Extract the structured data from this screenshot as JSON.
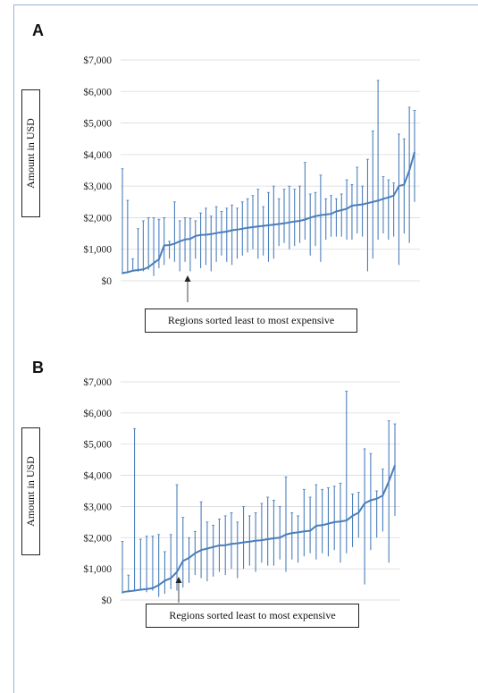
{
  "chart_data": [
    {
      "panel": "A",
      "type": "line",
      "ylabel": "Amount in USD",
      "yticks": [
        "$7,000",
        "$6,000",
        "$5,000",
        "$4,000",
        "$3,000",
        "$2,000",
        "$1,000",
        "$0"
      ],
      "ylim": [
        0,
        7000
      ],
      "grid": true,
      "color": "#4a7ebb",
      "annotation": "Regions sorted least to most expensive",
      "series": [
        {
          "values": [
            250,
            270,
            320,
            340,
            360,
            430,
            560,
            680,
            1120,
            1130,
            1180,
            1250,
            1310,
            1330,
            1420,
            1450,
            1460,
            1480,
            1510,
            1540,
            1560,
            1600,
            1620,
            1650,
            1680,
            1700,
            1720,
            1740,
            1760,
            1780,
            1800,
            1820,
            1850,
            1880,
            1900,
            1940,
            2000,
            2050,
            2080,
            2100,
            2120,
            2200,
            2240,
            2280,
            2380,
            2400,
            2420,
            2460,
            2500,
            2540,
            2600,
            2640,
            2700,
            3000,
            3050,
            3500,
            4080
          ],
          "low": [
            200,
            250,
            300,
            290,
            300,
            350,
            150,
            400,
            500,
            700,
            600,
            300,
            600,
            300,
            700,
            400,
            500,
            300,
            600,
            800,
            600,
            500,
            700,
            800,
            900,
            1000,
            700,
            800,
            600,
            700,
            1100,
            1200,
            1000,
            1100,
            1200,
            1300,
            800,
            1100,
            600,
            1300,
            1400,
            1400,
            1400,
            1300,
            1300,
            1500,
            1400,
            300,
            700,
            1300,
            1500,
            1300,
            1400,
            500,
            1500,
            1200,
            2500
          ],
          "high": [
            3550,
            2550,
            700,
            1650,
            1900,
            2000,
            2000,
            1950,
            2000,
            1250,
            2500,
            1900,
            2000,
            1980,
            1900,
            2150,
            2300,
            2050,
            2350,
            2200,
            2300,
            2400,
            2300,
            2500,
            2600,
            2700,
            2900,
            2350,
            2800,
            3000,
            2600,
            2900,
            3000,
            2900,
            3000,
            3750,
            2750,
            2800,
            3350,
            2600,
            2700,
            2600,
            2750,
            3200,
            3050,
            3600,
            3000,
            3850,
            4750,
            6350,
            3300,
            3200,
            3100,
            4650,
            4500,
            5500,
            5400
          ]
        }
      ]
    },
    {
      "panel": "B",
      "type": "line",
      "ylabel": "Amount in USD",
      "yticks": [
        "$7,000",
        "$6,000",
        "$5,000",
        "$4,000",
        "$3,000",
        "$2,000",
        "$1,000",
        "$0"
      ],
      "ylim": [
        0,
        7000
      ],
      "grid": true,
      "color": "#4a7ebb",
      "annotation": "Regions sorted least to most expensive",
      "series": [
        {
          "values": [
            250,
            280,
            300,
            330,
            350,
            380,
            480,
            620,
            700,
            900,
            1250,
            1350,
            1500,
            1600,
            1650,
            1700,
            1750,
            1760,
            1800,
            1820,
            1850,
            1870,
            1900,
            1920,
            1950,
            1980,
            2000,
            2100,
            2150,
            2170,
            2200,
            2220,
            2380,
            2400,
            2450,
            2500,
            2520,
            2550,
            2700,
            2800,
            3100,
            3200,
            3250,
            3350,
            3800,
            4320
          ],
          "low": [
            200,
            250,
            280,
            300,
            250,
            300,
            100,
            200,
            350,
            300,
            400,
            550,
            800,
            700,
            600,
            750,
            900,
            800,
            1000,
            700,
            1000,
            1100,
            900,
            1200,
            1100,
            1100,
            1300,
            900,
            1300,
            1200,
            1400,
            1500,
            1300,
            1500,
            1400,
            1600,
            1200,
            1500,
            1700,
            2000,
            500,
            1600,
            2000,
            2200,
            1200,
            2700
          ],
          "high": [
            1880,
            800,
            5500,
            1950,
            2050,
            2050,
            2100,
            1550,
            2100,
            3700,
            2650,
            2000,
            2200,
            3150,
            2500,
            2400,
            2600,
            2700,
            2800,
            2500,
            3000,
            2700,
            2800,
            3100,
            3300,
            3200,
            3000,
            3950,
            2800,
            2700,
            3550,
            3300,
            3700,
            3550,
            3600,
            3650,
            3750,
            6700,
            3400,
            3450,
            4850,
            4700,
            3500,
            4200,
            5750,
            5650
          ]
        }
      ]
    }
  ]
}
